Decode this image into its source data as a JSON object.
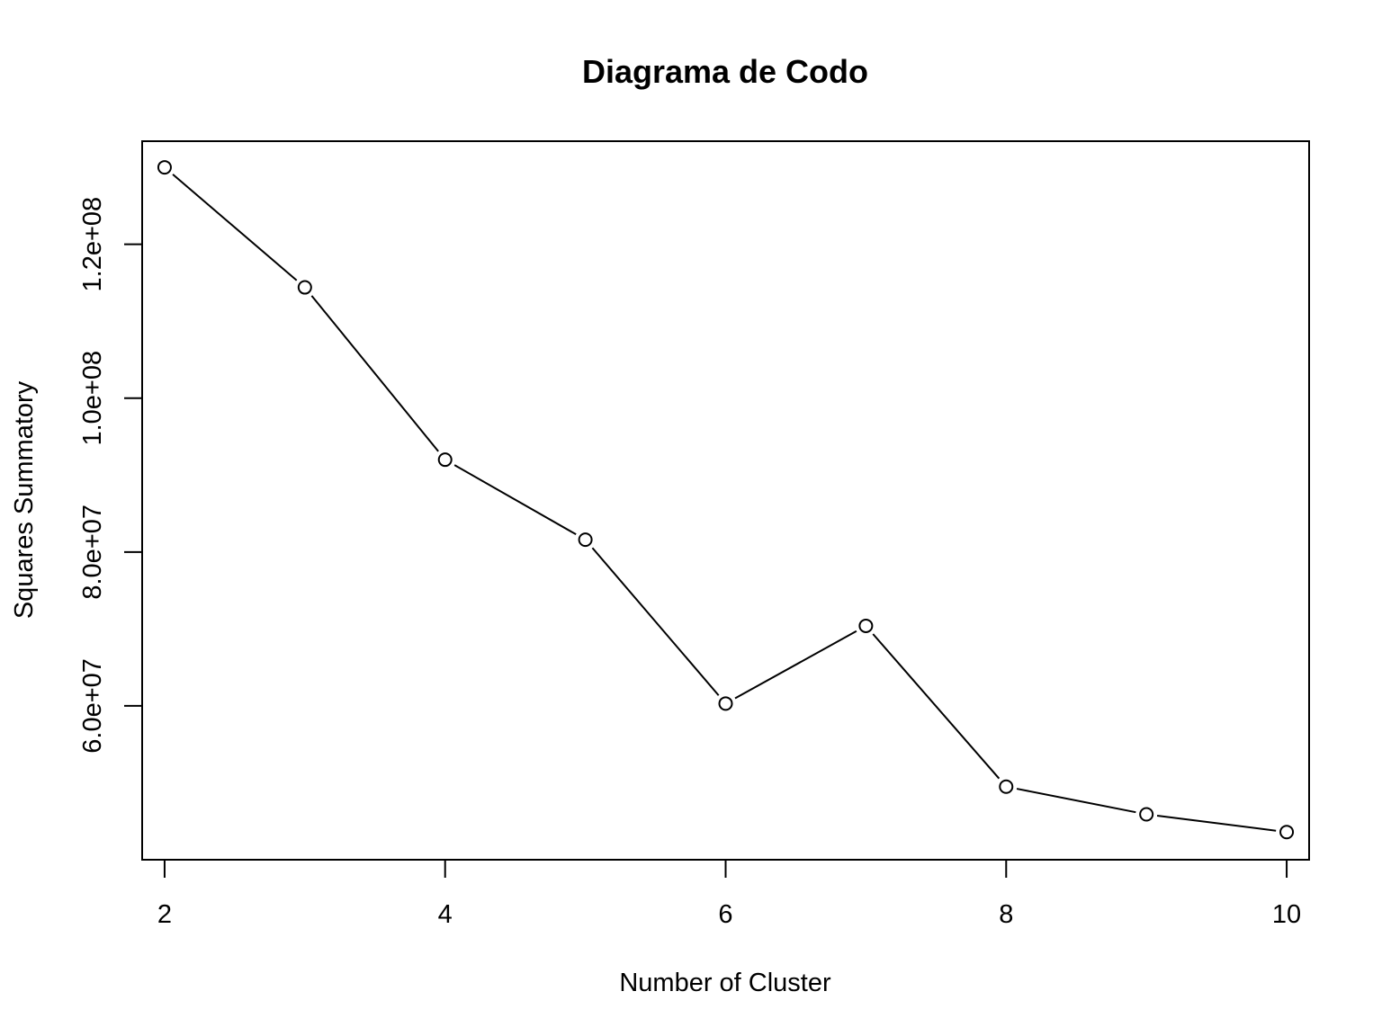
{
  "chart_data": {
    "type": "line",
    "title": "Diagrama de Codo",
    "xlabel": "Number of Cluster",
    "ylabel": "Squares Summatory",
    "x": [
      2,
      3,
      4,
      5,
      6,
      7,
      8,
      9,
      10
    ],
    "y": [
      130000000,
      114400000,
      92000000,
      81600000,
      60300000,
      70400000,
      49500000,
      45900000,
      43600000
    ],
    "xlim": [
      1.84,
      10.16
    ],
    "ylim": [
      40000000,
      133400000
    ],
    "xticks": [
      2,
      4,
      6,
      8,
      10
    ],
    "xtick_labels": [
      "2",
      "4",
      "6",
      "8",
      "10"
    ],
    "yticks": [
      60000000,
      80000000,
      100000000,
      120000000
    ],
    "ytick_labels": [
      "6.0e+07",
      "8.0e+07",
      "1.0e+08",
      "1.2e+08"
    ],
    "grid": false,
    "marker": "open-circle",
    "line_color": "#000000",
    "background": "#ffffff"
  }
}
